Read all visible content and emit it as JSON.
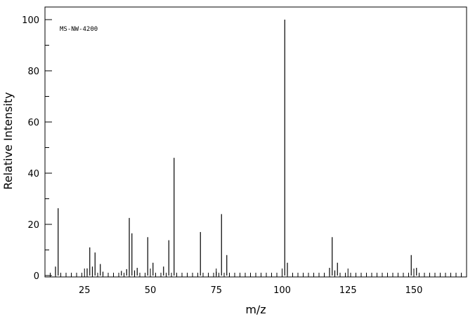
{
  "chart_data": {
    "type": "bar",
    "annotation": "MS-NW-4200",
    "xlabel": "m/z",
    "ylabel": "Relative Intensity",
    "xlim": [
      10,
      170
    ],
    "ylim": [
      0,
      100
    ],
    "x_ticks": [
      "25",
      "50",
      "75",
      "100",
      "125",
      "150"
    ],
    "y_ticks": [
      "0",
      "20",
      "40",
      "60",
      "80",
      "100"
    ],
    "grid": false,
    "peaks": [
      {
        "mz": 14,
        "intensity": 3.5
      },
      {
        "mz": 15,
        "intensity": 26.3
      },
      {
        "mz": 26,
        "intensity": 2.8
      },
      {
        "mz": 27,
        "intensity": 11.0
      },
      {
        "mz": 28,
        "intensity": 3.5
      },
      {
        "mz": 29,
        "intensity": 9.0
      },
      {
        "mz": 31,
        "intensity": 4.5
      },
      {
        "mz": 32,
        "intensity": 1.5
      },
      {
        "mz": 39,
        "intensity": 1.8
      },
      {
        "mz": 41,
        "intensity": 2.5
      },
      {
        "mz": 42,
        "intensity": 22.5
      },
      {
        "mz": 43,
        "intensity": 16.5
      },
      {
        "mz": 44,
        "intensity": 2.0
      },
      {
        "mz": 45,
        "intensity": 3.0
      },
      {
        "mz": 49,
        "intensity": 15.0
      },
      {
        "mz": 51,
        "intensity": 5.0
      },
      {
        "mz": 55,
        "intensity": 3.5
      },
      {
        "mz": 57,
        "intensity": 13.8
      },
      {
        "mz": 59,
        "intensity": 46.0
      },
      {
        "mz": 69,
        "intensity": 17.0
      },
      {
        "mz": 75,
        "intensity": 1.5
      },
      {
        "mz": 77,
        "intensity": 24.0
      },
      {
        "mz": 79,
        "intensity": 8.0
      },
      {
        "mz": 101,
        "intensity": 100.0
      },
      {
        "mz": 102,
        "intensity": 5.0
      },
      {
        "mz": 118,
        "intensity": 3.0
      },
      {
        "mz": 119,
        "intensity": 15.0
      },
      {
        "mz": 120,
        "intensity": 2.0
      },
      {
        "mz": 121,
        "intensity": 5.0
      },
      {
        "mz": 149,
        "intensity": 8.0
      },
      {
        "mz": 151,
        "intensity": 3.0
      }
    ]
  }
}
